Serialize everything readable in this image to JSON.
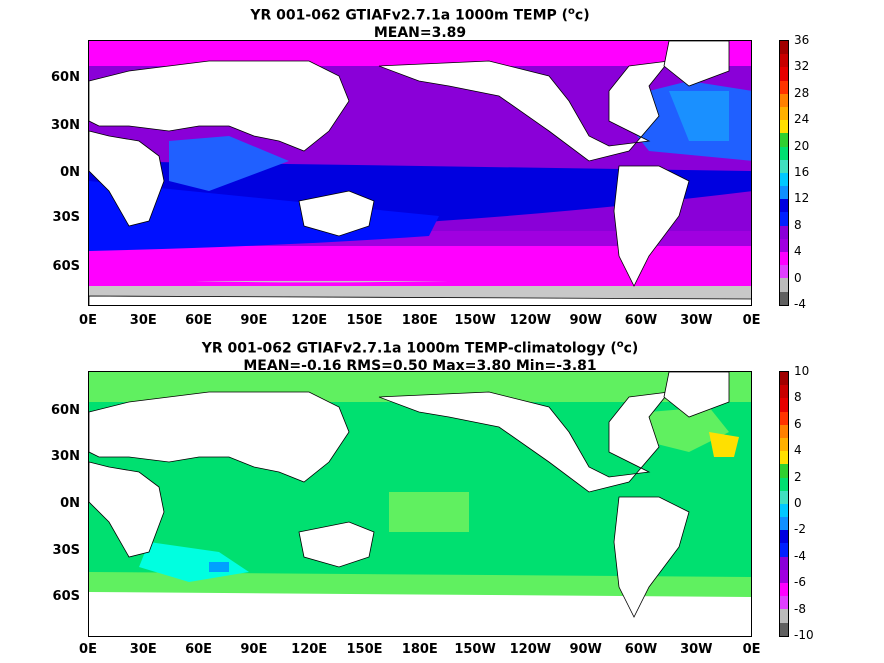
{
  "panel1": {
    "title_line1": "YR 001-062 GTIAFv2.7.1a 1000m TEMP (",
    "title_deg": "o",
    "title_unit": "c)",
    "title_line2": "MEAN=3.89",
    "colorbar_labels": [
      "36",
      "32",
      "28",
      "24",
      "20",
      "16",
      "12",
      "8",
      "4",
      "0",
      "-4"
    ]
  },
  "panel2": {
    "title_line1": "YR 001-062 GTIAFv2.7.1a 1000m TEMP-climatology (",
    "title_deg": "o",
    "title_unit": "c)",
    "title_line2": "MEAN=-0.16   RMS=0.50   Max=3.80   Min=-3.81",
    "colorbar_labels": [
      "10",
      "8",
      "6",
      "4",
      "2",
      "0",
      "-2",
      "-4",
      "-6",
      "-8",
      "-10"
    ]
  },
  "lat_labels": [
    "60N",
    "30N",
    "0N",
    "30S",
    "60S"
  ],
  "lon_labels": [
    "0E",
    "30E",
    "60E",
    "90E",
    "120E",
    "150E",
    "180E",
    "150W",
    "120W",
    "90W",
    "60W",
    "30W",
    "0E"
  ],
  "colors": {
    "colorbar1": [
      "#a00000",
      "#c80000",
      "#e60000",
      "#ff3300",
      "#ff8000",
      "#ffb000",
      "#ffe000",
      "#30d030",
      "#00e070",
      "#40e0c0",
      "#00c8ff",
      "#1090ff",
      "#0000e0",
      "#0020ff",
      "#8a00d8",
      "#a000e0",
      "#ff00ff",
      "#e040ff",
      "#bbbbbb",
      "#606060"
    ],
    "colorbar2": [
      "#a00000",
      "#c80000",
      "#e60000",
      "#ff3300",
      "#ff8000",
      "#ffb000",
      "#ffe000",
      "#30d030",
      "#00e070",
      "#40e0c0",
      "#00c8ff",
      "#1090ff",
      "#0000e0",
      "#0020ff",
      "#8a00d8",
      "#a000e0",
      "#ff00ff",
      "#e040ff",
      "#bbbbbb",
      "#606060"
    ],
    "ocean_purple": "#8a00d8",
    "ocean_blue": "#0000e0",
    "ocean_lightblue": "#2060ff",
    "magenta": "#ff00ff",
    "sea_ice": "#c8c8c8",
    "anom_green": "#00e070",
    "anom_lightgreen": "#60f060",
    "anom_cyan": "#00ffe0"
  }
}
